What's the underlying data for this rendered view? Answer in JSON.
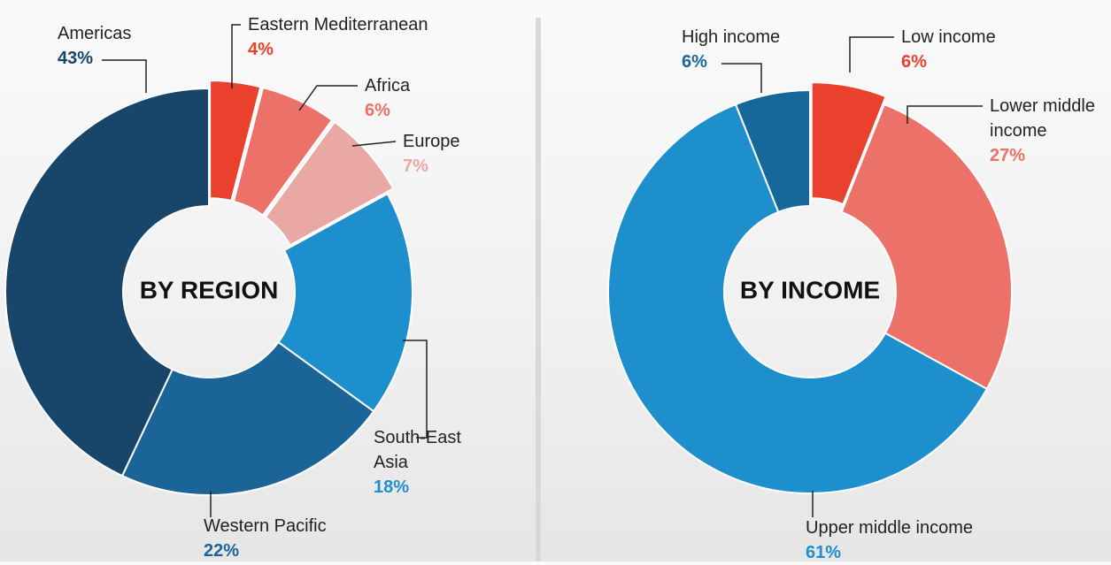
{
  "chart_data": [
    {
      "type": "pie",
      "title": "BY REGION",
      "categories": [
        "Eastern Mediterranean",
        "Africa",
        "Europe",
        "South-East Asia",
        "Western Pacific",
        "Americas"
      ],
      "values": [
        4,
        6,
        7,
        18,
        22,
        43
      ],
      "value_labels": [
        "4%",
        "6%",
        "7%",
        "18%",
        "22%",
        "43%"
      ],
      "colors": [
        "#ea412f",
        "#ec7169",
        "#eaa8a5",
        "#1e8fcd",
        "#1b6497",
        "#17466a"
      ]
    },
    {
      "type": "pie",
      "title": "BY INCOME",
      "categories": [
        "Low income",
        "Lower middle income",
        "Upper middle income",
        "High income"
      ],
      "values": [
        6,
        27,
        61,
        6
      ],
      "value_labels": [
        "6%",
        "27%",
        "61%",
        "6%"
      ],
      "colors": [
        "#ea412f",
        "#ec7169",
        "#1e8fcd",
        "#17689a"
      ]
    }
  ]
}
